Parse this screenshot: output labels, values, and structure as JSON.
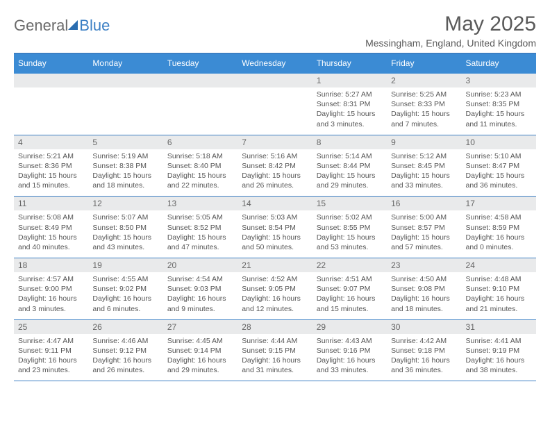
{
  "brand": {
    "part1": "General",
    "part2": "Blue"
  },
  "title": "May 2025",
  "subtitle": "Messingham, England, United Kingdom",
  "colors": {
    "header_bg": "#3b8bd4",
    "accent": "#3b7fc4",
    "daynum_bg": "#e9eaeb",
    "text": "#555555",
    "title_text": "#5a5a5a"
  },
  "day_labels": [
    "Sunday",
    "Monday",
    "Tuesday",
    "Wednesday",
    "Thursday",
    "Friday",
    "Saturday"
  ],
  "first_weekday_index": 4,
  "days": [
    {
      "n": 1,
      "sunrise": "5:27 AM",
      "sunset": "8:31 PM",
      "daylight": "15 hours and 3 minutes."
    },
    {
      "n": 2,
      "sunrise": "5:25 AM",
      "sunset": "8:33 PM",
      "daylight": "15 hours and 7 minutes."
    },
    {
      "n": 3,
      "sunrise": "5:23 AM",
      "sunset": "8:35 PM",
      "daylight": "15 hours and 11 minutes."
    },
    {
      "n": 4,
      "sunrise": "5:21 AM",
      "sunset": "8:36 PM",
      "daylight": "15 hours and 15 minutes."
    },
    {
      "n": 5,
      "sunrise": "5:19 AM",
      "sunset": "8:38 PM",
      "daylight": "15 hours and 18 minutes."
    },
    {
      "n": 6,
      "sunrise": "5:18 AM",
      "sunset": "8:40 PM",
      "daylight": "15 hours and 22 minutes."
    },
    {
      "n": 7,
      "sunrise": "5:16 AM",
      "sunset": "8:42 PM",
      "daylight": "15 hours and 26 minutes."
    },
    {
      "n": 8,
      "sunrise": "5:14 AM",
      "sunset": "8:44 PM",
      "daylight": "15 hours and 29 minutes."
    },
    {
      "n": 9,
      "sunrise": "5:12 AM",
      "sunset": "8:45 PM",
      "daylight": "15 hours and 33 minutes."
    },
    {
      "n": 10,
      "sunrise": "5:10 AM",
      "sunset": "8:47 PM",
      "daylight": "15 hours and 36 minutes."
    },
    {
      "n": 11,
      "sunrise": "5:08 AM",
      "sunset": "8:49 PM",
      "daylight": "15 hours and 40 minutes."
    },
    {
      "n": 12,
      "sunrise": "5:07 AM",
      "sunset": "8:50 PM",
      "daylight": "15 hours and 43 minutes."
    },
    {
      "n": 13,
      "sunrise": "5:05 AM",
      "sunset": "8:52 PM",
      "daylight": "15 hours and 47 minutes."
    },
    {
      "n": 14,
      "sunrise": "5:03 AM",
      "sunset": "8:54 PM",
      "daylight": "15 hours and 50 minutes."
    },
    {
      "n": 15,
      "sunrise": "5:02 AM",
      "sunset": "8:55 PM",
      "daylight": "15 hours and 53 minutes."
    },
    {
      "n": 16,
      "sunrise": "5:00 AM",
      "sunset": "8:57 PM",
      "daylight": "15 hours and 57 minutes."
    },
    {
      "n": 17,
      "sunrise": "4:58 AM",
      "sunset": "8:59 PM",
      "daylight": "16 hours and 0 minutes."
    },
    {
      "n": 18,
      "sunrise": "4:57 AM",
      "sunset": "9:00 PM",
      "daylight": "16 hours and 3 minutes."
    },
    {
      "n": 19,
      "sunrise": "4:55 AM",
      "sunset": "9:02 PM",
      "daylight": "16 hours and 6 minutes."
    },
    {
      "n": 20,
      "sunrise": "4:54 AM",
      "sunset": "9:03 PM",
      "daylight": "16 hours and 9 minutes."
    },
    {
      "n": 21,
      "sunrise": "4:52 AM",
      "sunset": "9:05 PM",
      "daylight": "16 hours and 12 minutes."
    },
    {
      "n": 22,
      "sunrise": "4:51 AM",
      "sunset": "9:07 PM",
      "daylight": "16 hours and 15 minutes."
    },
    {
      "n": 23,
      "sunrise": "4:50 AM",
      "sunset": "9:08 PM",
      "daylight": "16 hours and 18 minutes."
    },
    {
      "n": 24,
      "sunrise": "4:48 AM",
      "sunset": "9:10 PM",
      "daylight": "16 hours and 21 minutes."
    },
    {
      "n": 25,
      "sunrise": "4:47 AM",
      "sunset": "9:11 PM",
      "daylight": "16 hours and 23 minutes."
    },
    {
      "n": 26,
      "sunrise": "4:46 AM",
      "sunset": "9:12 PM",
      "daylight": "16 hours and 26 minutes."
    },
    {
      "n": 27,
      "sunrise": "4:45 AM",
      "sunset": "9:14 PM",
      "daylight": "16 hours and 29 minutes."
    },
    {
      "n": 28,
      "sunrise": "4:44 AM",
      "sunset": "9:15 PM",
      "daylight": "16 hours and 31 minutes."
    },
    {
      "n": 29,
      "sunrise": "4:43 AM",
      "sunset": "9:16 PM",
      "daylight": "16 hours and 33 minutes."
    },
    {
      "n": 30,
      "sunrise": "4:42 AM",
      "sunset": "9:18 PM",
      "daylight": "16 hours and 36 minutes."
    },
    {
      "n": 31,
      "sunrise": "4:41 AM",
      "sunset": "9:19 PM",
      "daylight": "16 hours and 38 minutes."
    }
  ],
  "labels": {
    "sunrise_prefix": "Sunrise: ",
    "sunset_prefix": "Sunset: ",
    "daylight_prefix": "Daylight: "
  }
}
